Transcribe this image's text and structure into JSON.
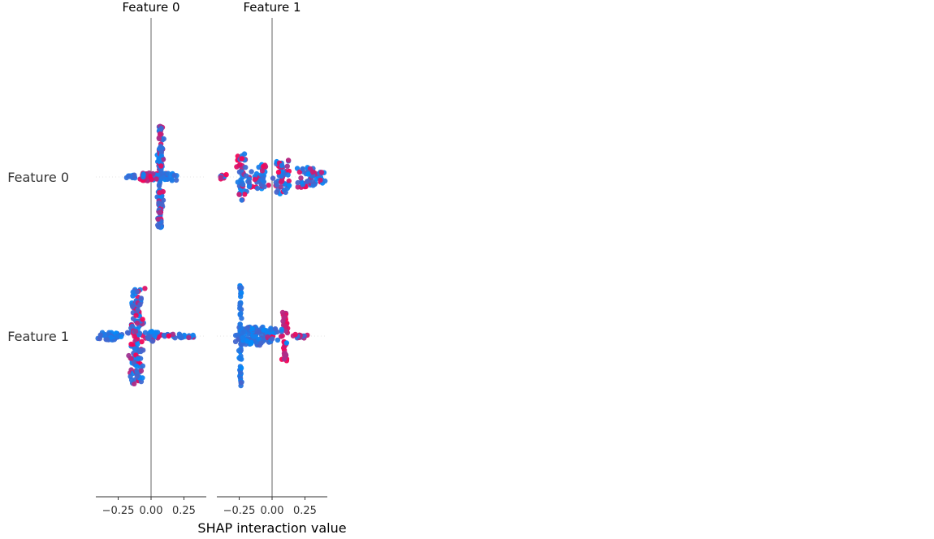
{
  "chart_data": {
    "type": "scatter",
    "subtype": "shap-interaction-beeswarm-grid",
    "columns": [
      "Feature 0",
      "Feature 1"
    ],
    "rows": [
      "Feature 0",
      "Feature 1"
    ],
    "xlabel": "SHAP interaction value",
    "x_ticks": [
      -0.25,
      0.0,
      0.25
    ],
    "x_tick_labels": [
      "−0.25",
      "0.00",
      "0.25"
    ],
    "xlim": [
      -0.42,
      0.42
    ],
    "grid": false,
    "legend": "none",
    "colors": {
      "low": "#008bfb",
      "high": "#ff0051",
      "zero_line": "#999999",
      "axis": "#333333"
    },
    "cells": [
      {
        "row": "Feature 0",
        "col": "Feature 0",
        "clusters": [
          {
            "x": 0.07,
            "spread": 0.02,
            "height": 0.78,
            "points": 150,
            "high_frac": 0.3
          },
          {
            "x": 0.09,
            "spread": 0.1,
            "height": 0.06,
            "points": 40,
            "high_frac": 0.3
          },
          {
            "x": -0.03,
            "spread": 0.06,
            "height": 0.06,
            "points": 35,
            "high_frac": 0.8
          },
          {
            "x": -0.16,
            "spread": 0.04,
            "height": 0.03,
            "points": 12,
            "high_frac": 0.2
          }
        ]
      },
      {
        "row": "Feature 0",
        "col": "Feature 1",
        "clusters": [
          {
            "x": -0.23,
            "spread": 0.03,
            "height": 0.36,
            "points": 45,
            "high_frac": 0.45
          },
          {
            "x": -0.1,
            "spread": 0.08,
            "height": 0.2,
            "points": 50,
            "high_frac": 0.3
          },
          {
            "x": 0.08,
            "spread": 0.06,
            "height": 0.26,
            "points": 50,
            "high_frac": 0.35
          },
          {
            "x": 0.28,
            "spread": 0.12,
            "height": 0.16,
            "points": 55,
            "high_frac": 0.5
          },
          {
            "x": -0.38,
            "spread": 0.03,
            "height": 0.04,
            "points": 10,
            "high_frac": 0.4
          }
        ]
      },
      {
        "row": "Feature 1",
        "col": "Feature 0",
        "clusters": [
          {
            "x": -0.11,
            "spread": 0.05,
            "height": 0.74,
            "points": 140,
            "high_frac": 0.3
          },
          {
            "x": -0.3,
            "spread": 0.1,
            "height": 0.06,
            "points": 50,
            "high_frac": 0.0
          },
          {
            "x": 0.18,
            "spread": 0.14,
            "height": 0.03,
            "points": 40,
            "high_frac": 0.15
          },
          {
            "x": 0.0,
            "spread": 0.04,
            "height": 0.08,
            "points": 25,
            "high_frac": 0.1
          }
        ]
      },
      {
        "row": "Feature 1",
        "col": "Feature 1",
        "clusters": [
          {
            "x": -0.24,
            "spread": 0.01,
            "height": 0.8,
            "points": 60,
            "high_frac": 0.0
          },
          {
            "x": -0.15,
            "spread": 0.12,
            "height": 0.14,
            "points": 90,
            "high_frac": 0.0
          },
          {
            "x": 0.1,
            "spread": 0.02,
            "height": 0.38,
            "points": 45,
            "high_frac": 0.95
          },
          {
            "x": 0.0,
            "spread": 0.08,
            "height": 0.12,
            "points": 35,
            "high_frac": 0.15
          },
          {
            "x": 0.22,
            "spread": 0.06,
            "height": 0.03,
            "points": 15,
            "high_frac": 0.4
          }
        ]
      }
    ]
  }
}
